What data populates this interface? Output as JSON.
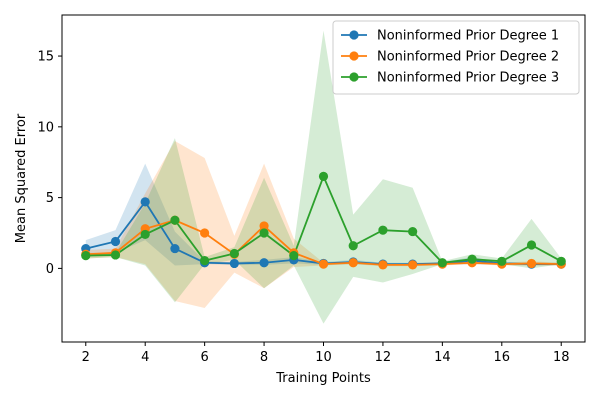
{
  "chart_data": {
    "type": "line",
    "xlabel": "Training Points",
    "ylabel": "Mean Squared Error",
    "xlim": [
      1.2,
      18.8
    ],
    "ylim": [
      -5.2,
      17.9
    ],
    "xticks": [
      2,
      4,
      6,
      8,
      10,
      12,
      14,
      16,
      18
    ],
    "yticks": [
      0,
      5,
      10,
      15
    ],
    "grid": false,
    "legend_position": "top-right",
    "x": [
      2,
      3,
      4,
      5,
      6,
      7,
      8,
      9,
      10,
      11,
      12,
      13,
      14,
      15,
      16,
      17,
      18
    ],
    "series": [
      {
        "name": "Noninformed Prior Degree 1",
        "color": "#1f77b4",
        "values": [
          1.4,
          1.9,
          4.7,
          1.4,
          0.4,
          0.35,
          0.4,
          0.6,
          0.35,
          0.45,
          0.3,
          0.3,
          0.35,
          0.55,
          0.35,
          0.3,
          0.3
        ],
        "band_lower": [
          0.8,
          1.1,
          2.0,
          0.2,
          0.3,
          0.25,
          0.25,
          0.35,
          0.25,
          0.3,
          0.2,
          0.2,
          0.25,
          0.3,
          0.25,
          0.2,
          0.2
        ],
        "band_upper": [
          2.0,
          2.7,
          7.4,
          2.6,
          0.5,
          0.45,
          0.6,
          0.8,
          0.45,
          0.6,
          0.4,
          0.4,
          0.45,
          0.8,
          0.45,
          0.4,
          0.4
        ]
      },
      {
        "name": "Noninformed Prior Degree 2",
        "color": "#ff7f0e",
        "values": [
          1.0,
          1.1,
          2.8,
          3.4,
          2.5,
          1.0,
          3.0,
          1.1,
          0.3,
          0.4,
          0.25,
          0.25,
          0.3,
          0.4,
          0.3,
          0.35,
          0.3
        ],
        "band_lower": [
          0.7,
          0.8,
          0.3,
          -2.3,
          -2.8,
          -0.3,
          -1.4,
          0.1,
          0.2,
          0.3,
          0.15,
          0.15,
          0.2,
          0.3,
          0.2,
          0.2,
          0.2
        ],
        "band_upper": [
          1.3,
          1.4,
          5.3,
          9.0,
          7.8,
          2.3,
          7.4,
          2.1,
          0.4,
          0.5,
          0.35,
          0.35,
          0.4,
          0.5,
          0.4,
          0.5,
          0.4
        ]
      },
      {
        "name": "Noninformed Prior Degree 3",
        "color": "#2ca02c",
        "values": [
          0.9,
          0.95,
          2.4,
          3.4,
          0.55,
          1.05,
          2.5,
          0.9,
          6.5,
          1.6,
          2.7,
          2.6,
          0.4,
          0.65,
          0.5,
          1.65,
          0.5
        ],
        "band_lower": [
          0.7,
          0.8,
          0.2,
          -2.4,
          0.3,
          0.6,
          -1.4,
          0.2,
          -3.9,
          -0.6,
          -1.0,
          -0.4,
          0.3,
          0.3,
          0.3,
          0.0,
          0.3
        ],
        "band_upper": [
          1.1,
          1.1,
          4.6,
          9.2,
          0.8,
          1.5,
          6.4,
          1.6,
          16.8,
          3.8,
          6.3,
          5.7,
          0.5,
          1.0,
          0.7,
          3.5,
          0.7
        ]
      }
    ]
  }
}
